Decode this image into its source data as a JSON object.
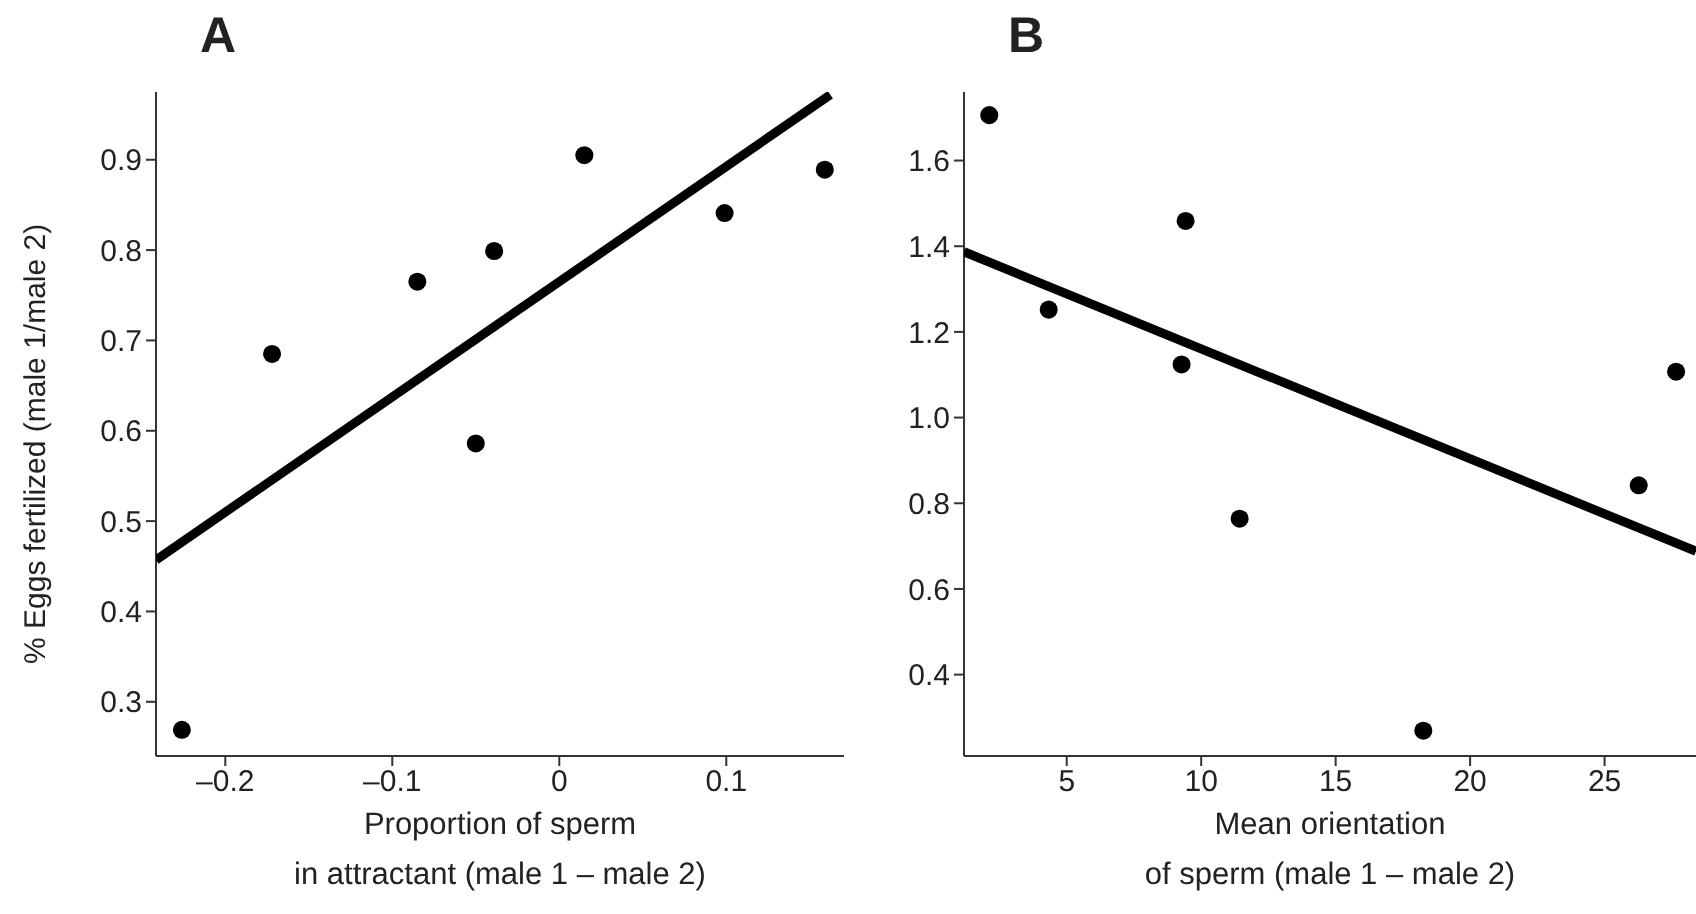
{
  "chart_data": [
    {
      "type": "scatter",
      "title": "A",
      "xlabel": "Proportion of sperm\nin attractant (male 1 – male 2)",
      "ylabel": "% Eggs fertilized (male 1/male 2)",
      "xlim": [
        -0.2415,
        0.1705
      ],
      "xticks": [
        {
          "value": -0.2,
          "label": "–0.2"
        },
        {
          "value": -0.1,
          "label": "–0.1"
        },
        0,
        0.1
      ],
      "ylim": [
        0.24,
        0.975
      ],
      "yticks": [
        0.3,
        0.4,
        0.5,
        0.6,
        0.7,
        0.8,
        0.9
      ],
      "series": [
        {
          "type": "scatter",
          "marker": "circle",
          "color": "#000000",
          "x": [
            -0.226,
            -0.172,
            -0.085,
            -0.039,
            -0.05,
            0.015,
            0.099,
            0.159
          ],
          "values": [
            0.269,
            0.685,
            0.765,
            0.799,
            0.586,
            0.905,
            0.841,
            0.889
          ]
        },
        {
          "type": "line",
          "marker": "none",
          "line_style": "solid",
          "color": "#000000",
          "x": [
            -0.2415,
            0.1623
          ],
          "values": [
            0.457,
            0.972
          ]
        }
      ]
    },
    {
      "type": "scatter",
      "title": "B",
      "xlabel": "Mean orientation\nof sperm (male 1 – male 2)",
      "xlim": [
        1.18,
        28.4
      ],
      "xticks": [
        5,
        10,
        15,
        20,
        25
      ],
      "ylim": [
        0.21,
        1.76
      ],
      "yticks": [
        0.4,
        0.6,
        0.8,
        {
          "value": 1,
          "label": "1.0"
        },
        1.2,
        1.4,
        1.6
      ],
      "series": [
        {
          "type": "scatter",
          "marker": "circle",
          "color": "#000000",
          "x": [
            2.12,
            4.33,
            9.42,
            9.27,
            11.43,
            18.26,
            26.27,
            27.66
          ],
          "values": [
            1.706,
            1.252,
            1.459,
            1.124,
            0.764,
            0.269,
            0.842,
            1.107
          ]
        },
        {
          "type": "line",
          "marker": "none",
          "line_style": "solid",
          "color": "#000000",
          "x": [
            1.18,
            28.4
          ],
          "values": [
            1.387,
            0.688
          ]
        }
      ]
    }
  ]
}
